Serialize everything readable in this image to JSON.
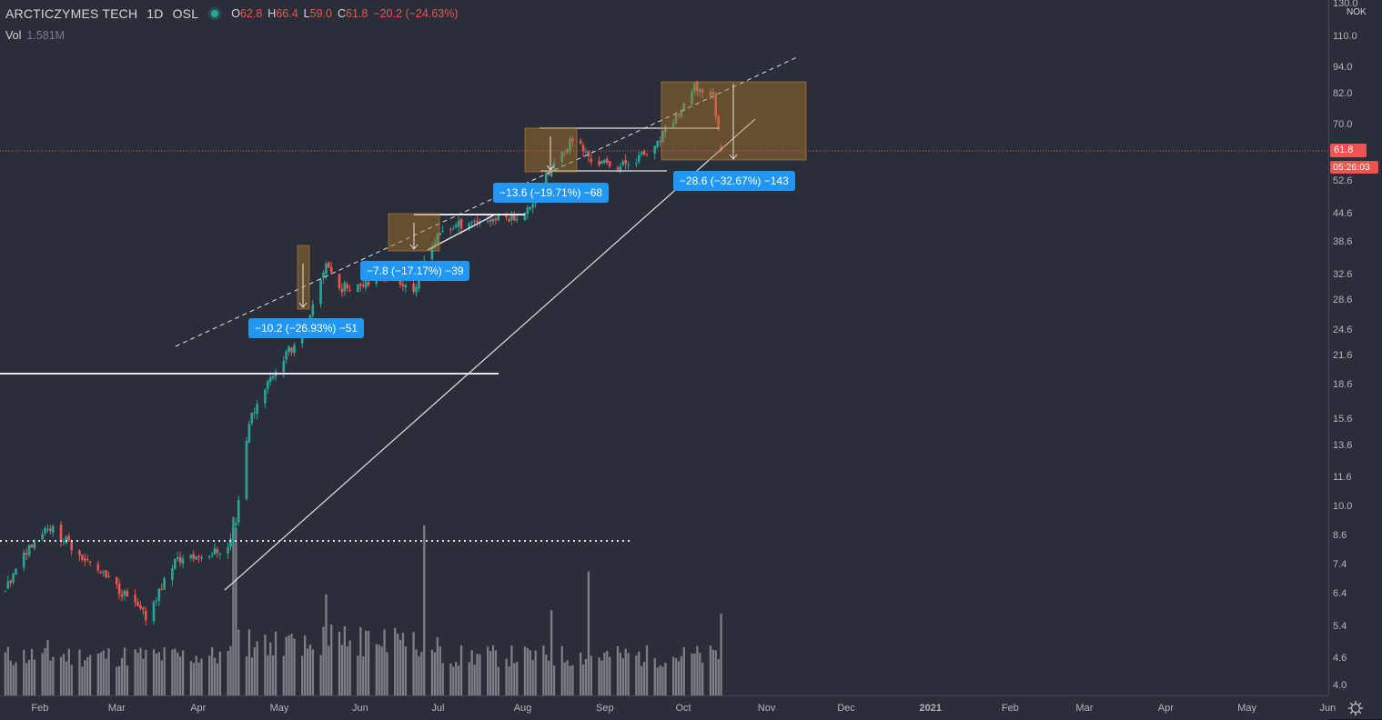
{
  "header": {
    "symbol": "ARCTICZYMES TECH",
    "interval": "1D",
    "exchange": "OSL",
    "ohlc": [
      {
        "k": "O",
        "v": "62.8"
      },
      {
        "k": "H",
        "v": "66.4"
      },
      {
        "k": "L",
        "v": "59.0"
      },
      {
        "k": "C",
        "v": "61.8"
      }
    ],
    "change": "−20.2 (−24.63%)",
    "status_color": "#26a69a"
  },
  "volume": {
    "label": "Vol",
    "value": "1.581M"
  },
  "price_axis": {
    "currency": "NOK",
    "ticks": [
      "4.0",
      "4.6",
      "5.4",
      "6.4",
      "7.4",
      "8.6",
      "10.0",
      "11.6",
      "13.6",
      "15.6",
      "18.6",
      "21.6",
      "24.6",
      "28.6",
      "32.6",
      "38.6",
      "44.6",
      "52.6",
      "61.8",
      "70.0",
      "82.0",
      "94.0",
      "110.0",
      "130.0"
    ],
    "last_price": "61.8",
    "countdown": "05:26:03",
    "scale": "log",
    "range": [
      3.9,
      136
    ]
  },
  "time_axis": {
    "labels": [
      "Feb",
      "Mar",
      "Apr",
      "May",
      "Jun",
      "Jul",
      "Aug",
      "Sep",
      "Oct",
      "Nov",
      "Dec",
      "2021",
      "Feb",
      "Mar",
      "Apr",
      "May",
      "Jun"
    ]
  },
  "annotations": [
    {
      "text": "−10.2 (−26.93%) −51"
    },
    {
      "text": "−7.8 (−17.17%) −39"
    },
    {
      "text": "−13.6 (−19.71%) −68"
    },
    {
      "text": "−28.6 (−32.67%) −143"
    }
  ],
  "colors": {
    "up": "#26a69a",
    "down": "#ef5350",
    "background": "#2a2e39",
    "callout": "#2196f3",
    "box": "#a0702e"
  },
  "chart_data": {
    "type": "candlestick",
    "title": "ARCTICZYMES TECH 1D OSL",
    "x_range": [
      "2020-01-25",
      "2021-06-20"
    ],
    "y_scale": "log",
    "legend": "top-left",
    "anchors": [
      [
        "2020-01-27",
        6.5
      ],
      [
        "2020-02-05",
        8.2
      ],
      [
        "2020-02-12",
        9.1
      ],
      [
        "2020-02-20",
        8.3
      ],
      [
        "2020-03-02",
        7.2
      ],
      [
        "2020-03-12",
        6.4
      ],
      [
        "2020-03-20",
        5.7
      ],
      [
        "2020-03-31",
        7.6
      ],
      [
        "2020-04-10",
        7.8
      ],
      [
        "2020-04-20",
        8.1
      ],
      [
        "2020-04-23",
        9.4
      ],
      [
        "2020-04-28",
        15.5
      ],
      [
        "2020-05-04",
        18.5
      ],
      [
        "2020-05-10",
        21.0
      ],
      [
        "2020-05-20",
        25.0
      ],
      [
        "2020-05-27",
        35.0
      ],
      [
        "2020-06-01",
        30.5
      ],
      [
        "2020-06-10",
        31.5
      ],
      [
        "2020-06-20",
        33.0
      ],
      [
        "2020-06-30",
        30.0
      ],
      [
        "2020-07-03",
        36.0
      ],
      [
        "2020-07-10",
        41.0
      ],
      [
        "2020-07-20",
        43.0
      ],
      [
        "2020-07-30",
        43.5
      ],
      [
        "2020-08-10",
        44.5
      ],
      [
        "2020-08-15",
        50.0
      ],
      [
        "2020-08-20",
        56.0
      ],
      [
        "2020-08-28",
        66.0
      ],
      [
        "2020-09-05",
        58.0
      ],
      [
        "2020-09-15",
        57.0
      ],
      [
        "2020-09-28",
        62.0
      ],
      [
        "2020-10-03",
        70.0
      ],
      [
        "2020-10-10",
        78.0
      ],
      [
        "2020-10-13",
        85.0
      ],
      [
        "2020-10-20",
        82.0
      ],
      [
        "2020-10-23",
        61.8
      ]
    ],
    "volume_spikes": [
      [
        "2020-04-22",
        9.5
      ],
      [
        "2020-04-23",
        9.0
      ],
      [
        "2020-07-03",
        9.1
      ],
      [
        "2020-08-20",
        5.9
      ],
      [
        "2020-09-03",
        7.2
      ],
      [
        "2020-10-23",
        5.8
      ],
      [
        "2020-05-27",
        6.4
      ]
    ]
  }
}
